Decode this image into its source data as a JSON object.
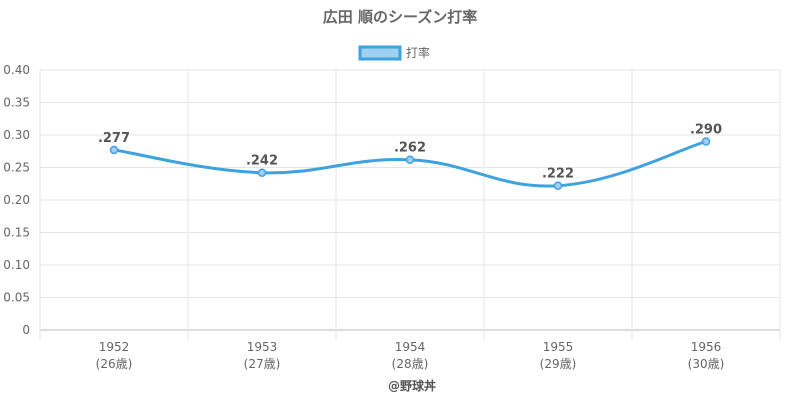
{
  "chart_data": {
    "type": "line",
    "title": "広田 順のシーズン打率",
    "legend": {
      "label": "打率",
      "placement": "top"
    },
    "categories": [
      "1952",
      "1953",
      "1954",
      "1955",
      "1956"
    ],
    "age_labels": [
      "(26歳)",
      "(27歳)",
      "(28歳)",
      "(29歳)",
      "(30歳)"
    ],
    "series": [
      {
        "name": "打率",
        "values": [
          0.277,
          0.242,
          0.262,
          0.222,
          0.29
        ],
        "labels": [
          ".277",
          ".242",
          ".262",
          ".222",
          ".290"
        ]
      }
    ],
    "ylim": [
      0,
      0.4
    ],
    "yticks": [
      "0",
      "0.05",
      "0.10",
      "0.15",
      "0.20",
      "0.25",
      "0.30",
      "0.35",
      "0.40"
    ],
    "grid": true,
    "colors": {
      "line": "#3fa2e0",
      "fill": "#9fd0f0",
      "grid": "#e6e6e6",
      "axis": "#bbbbbb"
    }
  },
  "footer": {
    "credit": "@野球丼"
  }
}
